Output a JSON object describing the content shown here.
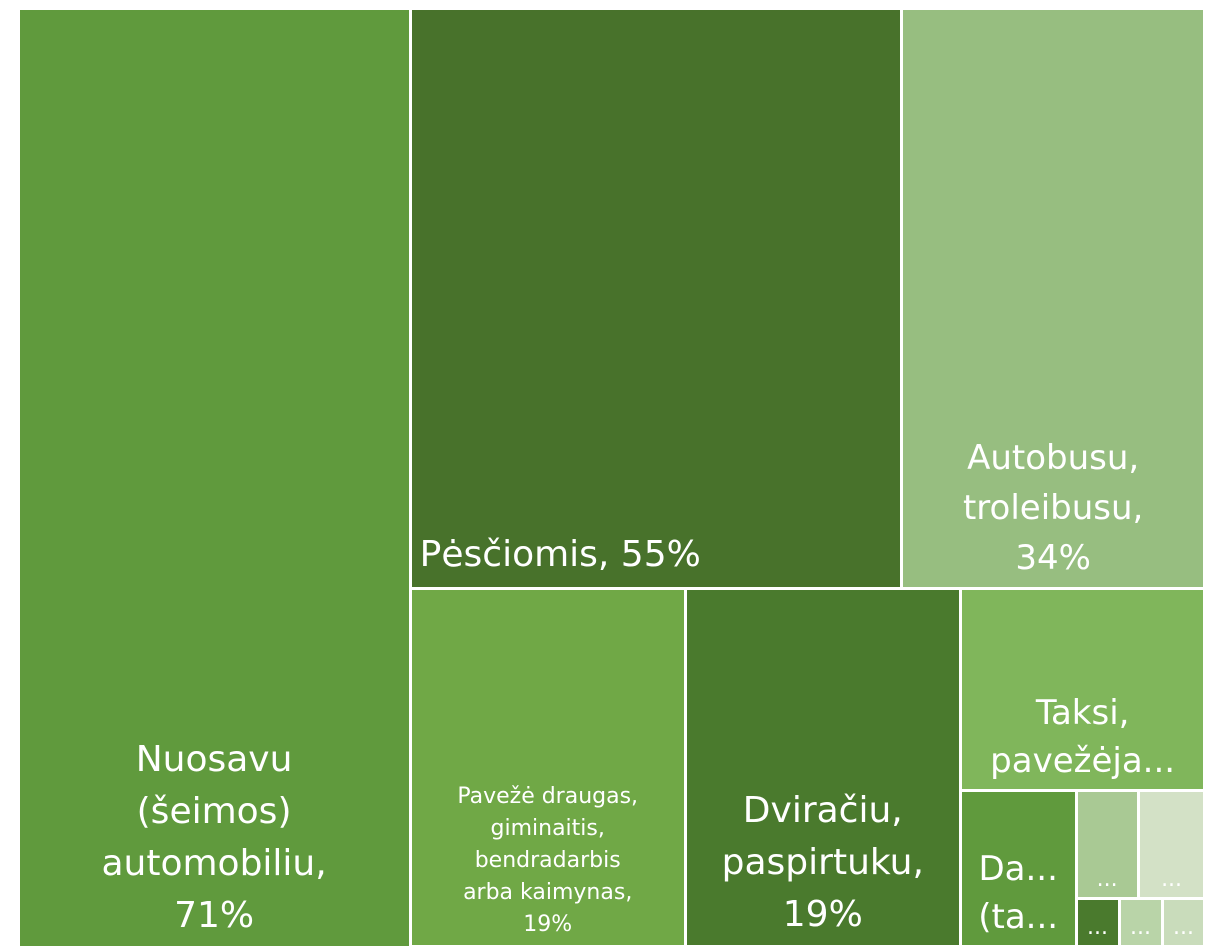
{
  "chart_data": {
    "type": "treemap",
    "categories": [
      "Nuosavu\n(šeimos)\nautomobiliu,\n71%",
      "Pėsčiomis, 55%",
      "Autobusu,\ntroleibusu,\n34%",
      "Pavežė draugas,\ngiminaitis,\nbendradarbis\narba kaimynas,\n19%",
      "Dviračiu,\npaspirtuku,\n19%",
      "Taksi,\npavežėja...",
      "Da...\n(ta...",
      "...",
      "...",
      "...",
      "...",
      "..."
    ],
    "values": [
      71,
      55,
      34,
      19,
      19,
      9.5,
      3.5,
      1.3,
      1.4,
      0.4,
      0.4,
      0.4
    ],
    "colors": [
      "#609a3d",
      "#48722b",
      "#97be80",
      "#70a846",
      "#4a7a2d",
      "#80b65b",
      "#609a3d",
      "#a9c994",
      "#d3e1c6",
      "#4a7a2d",
      "#b9d4a8",
      "#c9dcbb"
    ]
  }
}
